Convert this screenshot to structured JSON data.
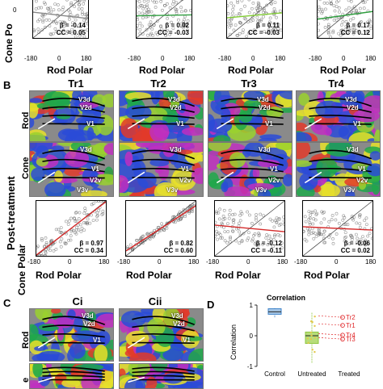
{
  "panel_letters": {
    "b": "B",
    "c": "C",
    "d": "D"
  },
  "axis_labels": {
    "rod_polar": "Rod Polar",
    "cone_polar": "Cone Polar",
    "cone_polar_top": "Cone Po"
  },
  "tick_labels": {
    "neg180": "-180",
    "zero": "0",
    "pos180": "180"
  },
  "row_labels": {
    "rod": "Rod",
    "cone": "Cone",
    "post_treatment": "Post-treatment",
    "cone_partial": "e"
  },
  "top_stats": [
    {
      "beta": "β = -0.14",
      "cc": "CC = 0.05"
    },
    {
      "beta": "β = 0.02",
      "cc": "CC = -0.03"
    },
    {
      "beta": "β = 0.11",
      "cc": "CC = -0.03"
    },
    {
      "beta": "β = 0.17",
      "cc": "CC = 0.12"
    }
  ],
  "treated_columns": [
    {
      "title": "Tr1",
      "beta": "β = 0.97",
      "cc": "CC = 0.34"
    },
    {
      "title": "Tr2",
      "beta": "β = 0.82",
      "cc": "CC = 0.60"
    },
    {
      "title": "Tr3",
      "beta": "β = -0.12",
      "cc": "CC = -0.11"
    },
    {
      "title": "Tr4",
      "beta": "β = -0.06",
      "cc": "CC = 0.02"
    }
  ],
  "area_labels": {
    "v1": "V1",
    "v2d": "V2d",
    "v2v": "V2v",
    "v3d": "V3d",
    "v3v": "V3v"
  },
  "c_titles": {
    "ci": "Ci",
    "cii": "Cii"
  },
  "chart_data": {
    "type": "box",
    "title": "Correlation",
    "ylabel": "Correlation",
    "categories": [
      "Control",
      "Untreated",
      "Treated"
    ],
    "ylim": [
      -1,
      1
    ],
    "yticks": [
      -1,
      0,
      1
    ],
    "boxes": [
      {
        "category": "Control",
        "median": 0.78,
        "q1": 0.7,
        "q3": 0.88,
        "whisker_low": 0.58,
        "whisker_high": 0.9,
        "color": "#3c82c8"
      },
      {
        "category": "Untreated",
        "median": 0.0,
        "q1": -0.25,
        "q3": 0.12,
        "whisker_low": -0.9,
        "whisker_high": 0.75,
        "color": "#8ec63f"
      }
    ],
    "treated_points": [
      {
        "name": "Tr2",
        "value": 0.6
      },
      {
        "name": "Tr1",
        "value": 0.34
      },
      {
        "name": "Tr4",
        "value": 0.02
      },
      {
        "name": "Tr3",
        "value": -0.11
      }
    ],
    "colors": {
      "treated": "#e0282a"
    }
  }
}
